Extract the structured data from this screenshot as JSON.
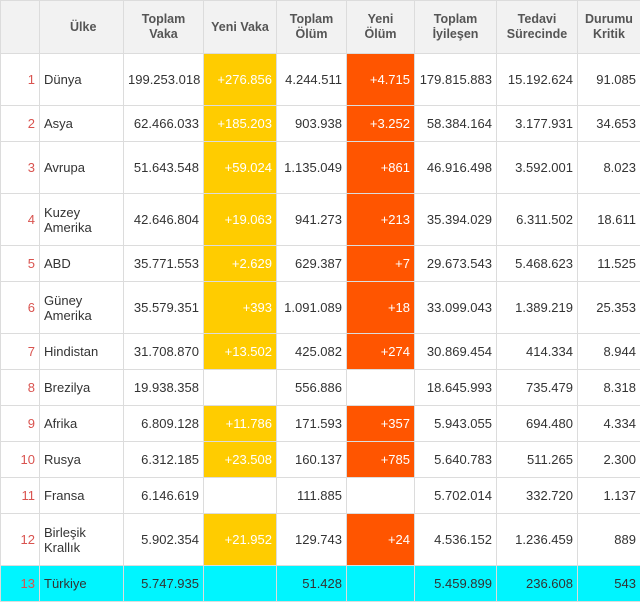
{
  "headers": {
    "country": "Ülke",
    "total_cases": "Toplam Vaka",
    "new_cases": "Yeni Vaka",
    "total_deaths": "Toplam Ölüm",
    "new_deaths": "Yeni Ölüm",
    "total_recovered": "Toplam İyileşen",
    "active": "Tedavi Sürecinde",
    "critical": "Durumu Kritik"
  },
  "colors": {
    "new_cases_bg": "#ffcc00",
    "new_deaths_bg": "#ff5500",
    "highlight_row_bg": "#00f5ff",
    "index_text": "#d9534f"
  },
  "rows": [
    {
      "idx": "1",
      "country": "Dünya",
      "total_cases": "199.253.018",
      "new_cases": "+276.856",
      "total_deaths": "4.244.511",
      "new_deaths": "+4.715",
      "total_recovered": "179.815.883",
      "active": "15.192.624",
      "critical": "91.085"
    },
    {
      "idx": "2",
      "country": "Asya",
      "total_cases": "62.466.033",
      "new_cases": "+185.203",
      "total_deaths": "903.938",
      "new_deaths": "+3.252",
      "total_recovered": "58.384.164",
      "active": "3.177.931",
      "critical": "34.653"
    },
    {
      "idx": "3",
      "country": "Avrupa",
      "total_cases": "51.643.548",
      "new_cases": "+59.024",
      "total_deaths": "1.135.049",
      "new_deaths": "+861",
      "total_recovered": "46.916.498",
      "active": "3.592.001",
      "critical": "8.023"
    },
    {
      "idx": "4",
      "country": "Kuzey Amerika",
      "total_cases": "42.646.804",
      "new_cases": "+19.063",
      "total_deaths": "941.273",
      "new_deaths": "+213",
      "total_recovered": "35.394.029",
      "active": "6.311.502",
      "critical": "18.611"
    },
    {
      "idx": "5",
      "country": "ABD",
      "total_cases": "35.771.553",
      "new_cases": "+2.629",
      "total_deaths": "629.387",
      "new_deaths": "+7",
      "total_recovered": "29.673.543",
      "active": "5.468.623",
      "critical": "11.525"
    },
    {
      "idx": "6",
      "country": "Güney Amerika",
      "total_cases": "35.579.351",
      "new_cases": "+393",
      "total_deaths": "1.091.089",
      "new_deaths": "+18",
      "total_recovered": "33.099.043",
      "active": "1.389.219",
      "critical": "25.353"
    },
    {
      "idx": "7",
      "country": "Hindistan",
      "total_cases": "31.708.870",
      "new_cases": "+13.502",
      "total_deaths": "425.082",
      "new_deaths": "+274",
      "total_recovered": "30.869.454",
      "active": "414.334",
      "critical": "8.944"
    },
    {
      "idx": "8",
      "country": "Brezilya",
      "total_cases": "19.938.358",
      "new_cases": "",
      "total_deaths": "556.886",
      "new_deaths": "",
      "total_recovered": "18.645.993",
      "active": "735.479",
      "critical": "8.318"
    },
    {
      "idx": "9",
      "country": "Afrika",
      "total_cases": "6.809.128",
      "new_cases": "+11.786",
      "total_deaths": "171.593",
      "new_deaths": "+357",
      "total_recovered": "5.943.055",
      "active": "694.480",
      "critical": "4.334"
    },
    {
      "idx": "10",
      "country": "Rusya",
      "total_cases": "6.312.185",
      "new_cases": "+23.508",
      "total_deaths": "160.137",
      "new_deaths": "+785",
      "total_recovered": "5.640.783",
      "active": "511.265",
      "critical": "2.300"
    },
    {
      "idx": "11",
      "country": "Fransa",
      "total_cases": "6.146.619",
      "new_cases": "",
      "total_deaths": "111.885",
      "new_deaths": "",
      "total_recovered": "5.702.014",
      "active": "332.720",
      "critical": "1.137"
    },
    {
      "idx": "12",
      "country": "Birleşik Krallık",
      "total_cases": "5.902.354",
      "new_cases": "+21.952",
      "total_deaths": "129.743",
      "new_deaths": "+24",
      "total_recovered": "4.536.152",
      "active": "1.236.459",
      "critical": "889"
    },
    {
      "idx": "13",
      "country": "Türkiye",
      "total_cases": "5.747.935",
      "new_cases": "",
      "total_deaths": "51.428",
      "new_deaths": "",
      "total_recovered": "5.459.899",
      "active": "236.608",
      "critical": "543",
      "highlight": true
    }
  ]
}
